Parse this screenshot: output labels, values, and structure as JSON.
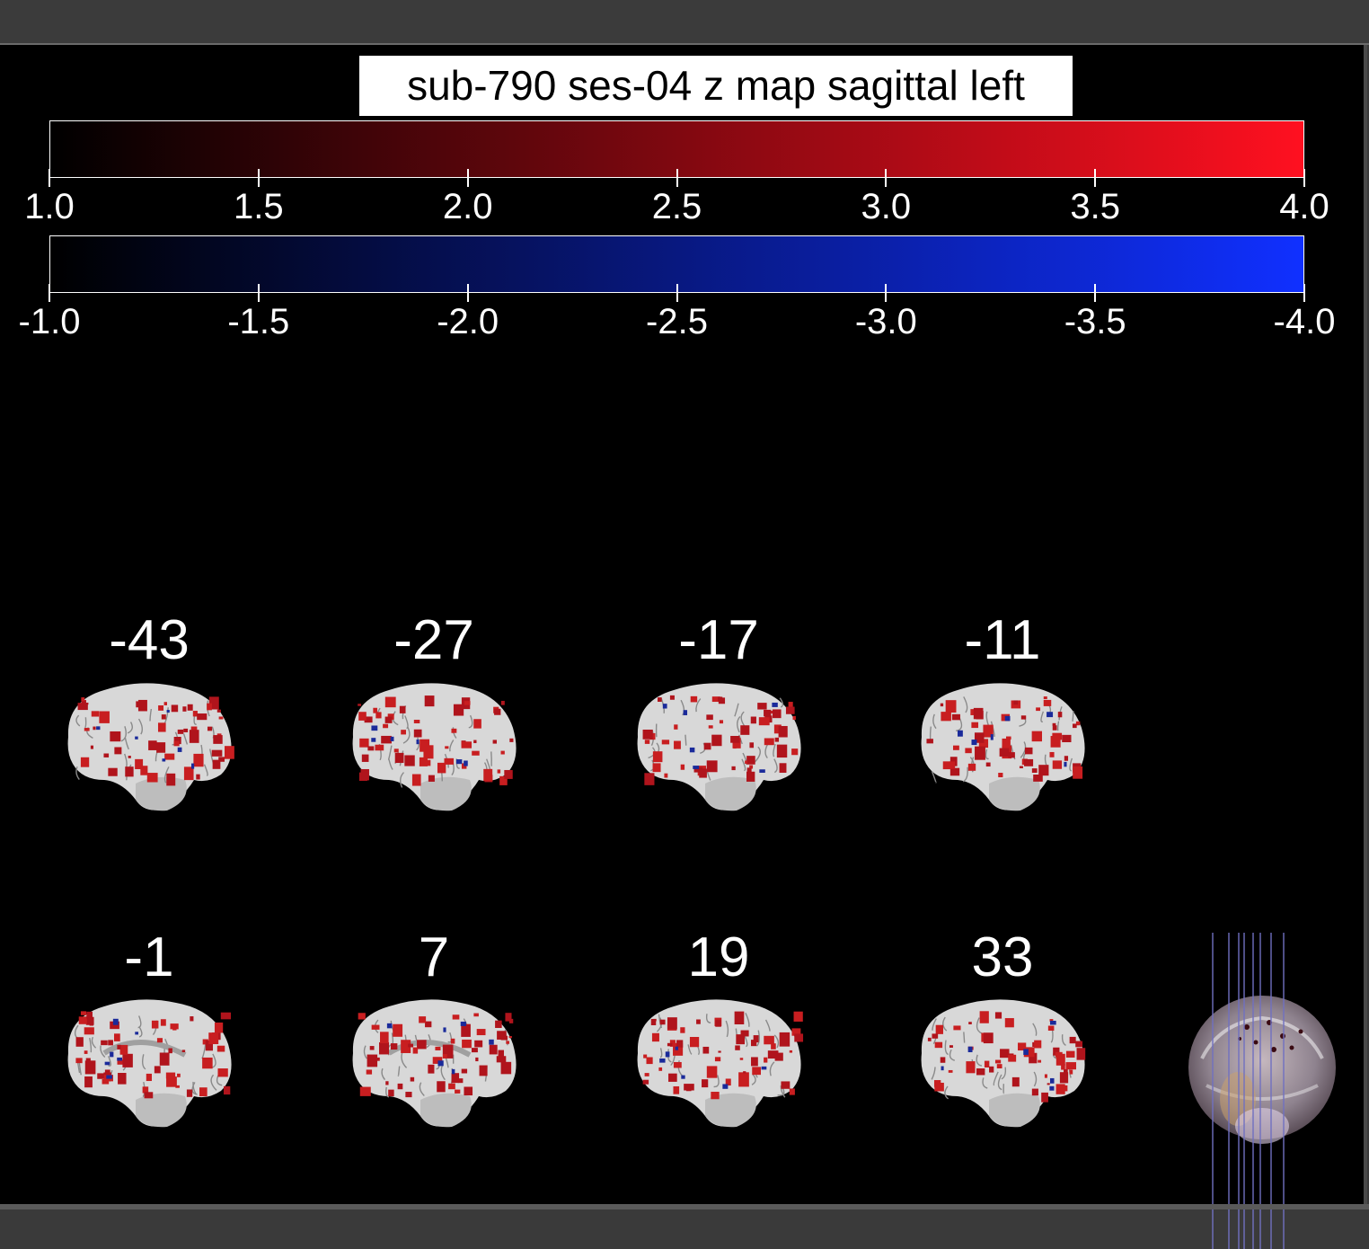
{
  "title": "sub-790 ses-04 z map sagittal left",
  "colorbars": {
    "positive": {
      "ticks": [
        "1.0",
        "1.5",
        "2.0",
        "2.5",
        "3.0",
        "3.5",
        "4.0"
      ],
      "color_start": "#000000",
      "color_end": "#ff1020"
    },
    "negative": {
      "ticks": [
        "-1.0",
        "-1.5",
        "-2.0",
        "-2.5",
        "-3.0",
        "-3.5",
        "-4.0"
      ],
      "color_start": "#000000",
      "color_end": "#1030ff"
    }
  },
  "slices": [
    {
      "label": "-43"
    },
    {
      "label": "-27"
    },
    {
      "label": "-17"
    },
    {
      "label": "-11"
    },
    {
      "label": "-1"
    },
    {
      "label": "7"
    },
    {
      "label": "19"
    },
    {
      "label": "33"
    }
  ],
  "colors": {
    "background": "#000000",
    "positive": "#c0141c",
    "negative": "#1a2a9a"
  },
  "icons": {
    "glass_brain": "glass-brain-overview-icon"
  }
}
